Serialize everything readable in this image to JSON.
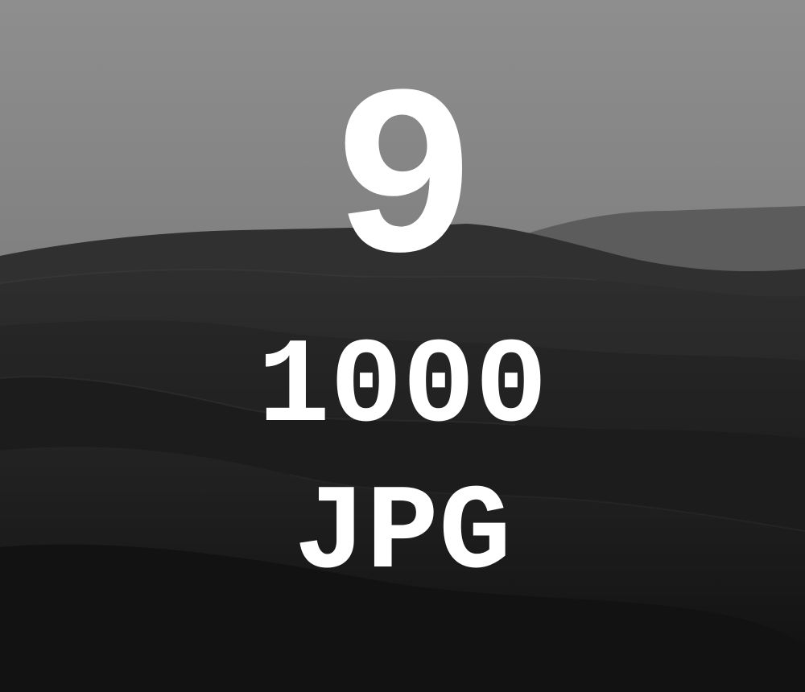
{
  "overlay": {
    "number": "9",
    "size": "1000",
    "format": "JPG"
  },
  "colors": {
    "sky_top": "#8c8c8c",
    "sky_bottom": "#6e6e6e",
    "distant_hills": "#5a5a5a",
    "dunes_dark": "#161616",
    "text": "#ffffff"
  }
}
